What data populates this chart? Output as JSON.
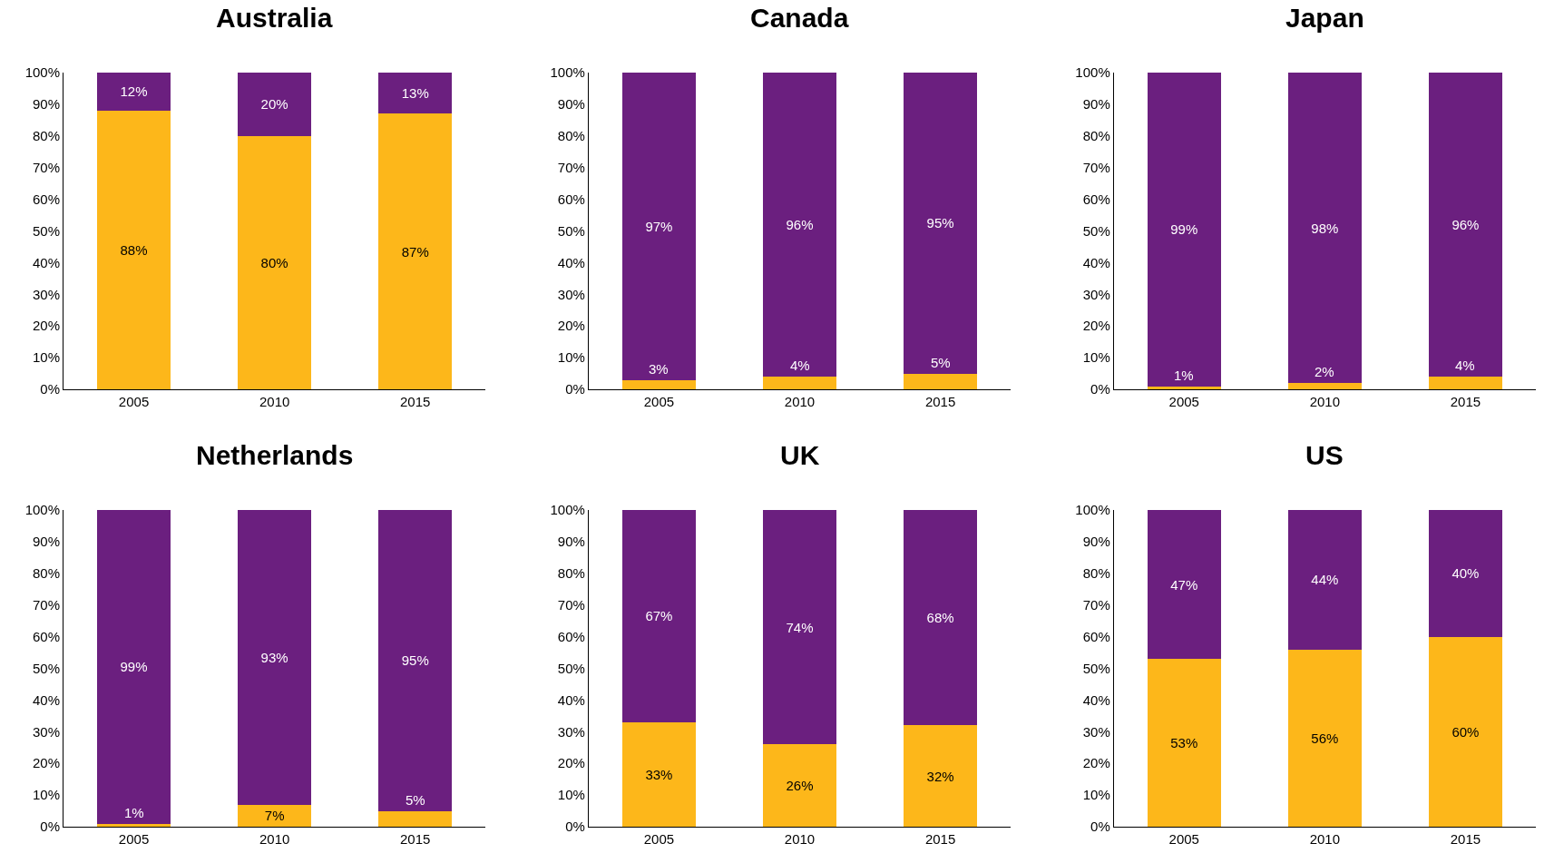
{
  "chart_data": [
    {
      "type": "bar",
      "title": "Australia",
      "categories": [
        "2005",
        "2010",
        "2015"
      ],
      "stacked": true,
      "ylim": [
        0,
        100
      ],
      "yticks": [
        {
          "value": 0,
          "label": "0%"
        },
        {
          "value": 10,
          "label": "10%"
        },
        {
          "value": 20,
          "label": "20%"
        },
        {
          "value": 30,
          "label": "30%"
        },
        {
          "value": 40,
          "label": "40%"
        },
        {
          "value": 50,
          "label": "50%"
        },
        {
          "value": 60,
          "label": "60%"
        },
        {
          "value": 70,
          "label": "70%"
        },
        {
          "value": 80,
          "label": "80%"
        },
        {
          "value": 90,
          "label": "90%"
        },
        {
          "value": 100,
          "label": "100%"
        }
      ],
      "series": [
        {
          "color": "#fdb71a",
          "values": [
            88,
            80,
            87
          ],
          "value_labels": [
            "88%",
            "80%",
            "87%"
          ]
        },
        {
          "color": "#6b1f7f",
          "values": [
            12,
            20,
            13
          ],
          "value_labels": [
            "12%",
            "20%",
            "13%"
          ]
        }
      ]
    },
    {
      "type": "bar",
      "title": "Canada",
      "categories": [
        "2005",
        "2010",
        "2015"
      ],
      "stacked": true,
      "ylim": [
        0,
        100
      ],
      "yticks": [
        {
          "value": 0,
          "label": "0%"
        },
        {
          "value": 10,
          "label": "10%"
        },
        {
          "value": 20,
          "label": "20%"
        },
        {
          "value": 30,
          "label": "30%"
        },
        {
          "value": 40,
          "label": "40%"
        },
        {
          "value": 50,
          "label": "50%"
        },
        {
          "value": 60,
          "label": "60%"
        },
        {
          "value": 70,
          "label": "70%"
        },
        {
          "value": 80,
          "label": "80%"
        },
        {
          "value": 90,
          "label": "90%"
        },
        {
          "value": 100,
          "label": "100%"
        }
      ],
      "series": [
        {
          "color": "#fdb71a",
          "values": [
            3,
            4,
            5
          ],
          "value_labels": [
            "3%",
            "4%",
            "5%"
          ]
        },
        {
          "color": "#6b1f7f",
          "values": [
            97,
            96,
            95
          ],
          "value_labels": [
            "97%",
            "96%",
            "95%"
          ]
        }
      ]
    },
    {
      "type": "bar",
      "title": "Japan",
      "categories": [
        "2005",
        "2010",
        "2015"
      ],
      "stacked": true,
      "ylim": [
        0,
        100
      ],
      "yticks": [
        {
          "value": 0,
          "label": "0%"
        },
        {
          "value": 10,
          "label": "10%"
        },
        {
          "value": 20,
          "label": "20%"
        },
        {
          "value": 30,
          "label": "30%"
        },
        {
          "value": 40,
          "label": "40%"
        },
        {
          "value": 50,
          "label": "50%"
        },
        {
          "value": 60,
          "label": "60%"
        },
        {
          "value": 70,
          "label": "70%"
        },
        {
          "value": 80,
          "label": "80%"
        },
        {
          "value": 90,
          "label": "90%"
        },
        {
          "value": 100,
          "label": "100%"
        }
      ],
      "series": [
        {
          "color": "#fdb71a",
          "values": [
            1,
            2,
            4
          ],
          "value_labels": [
            "1%",
            "2%",
            "4%"
          ]
        },
        {
          "color": "#6b1f7f",
          "values": [
            99,
            98,
            96
          ],
          "value_labels": [
            "99%",
            "98%",
            "96%"
          ]
        }
      ]
    },
    {
      "type": "bar",
      "title": "Netherlands",
      "categories": [
        "2005",
        "2010",
        "2015"
      ],
      "stacked": true,
      "ylim": [
        0,
        100
      ],
      "yticks": [
        {
          "value": 0,
          "label": "0%"
        },
        {
          "value": 10,
          "label": "10%"
        },
        {
          "value": 20,
          "label": "20%"
        },
        {
          "value": 30,
          "label": "30%"
        },
        {
          "value": 40,
          "label": "40%"
        },
        {
          "value": 50,
          "label": "50%"
        },
        {
          "value": 60,
          "label": "60%"
        },
        {
          "value": 70,
          "label": "70%"
        },
        {
          "value": 80,
          "label": "80%"
        },
        {
          "value": 90,
          "label": "90%"
        },
        {
          "value": 100,
          "label": "100%"
        }
      ],
      "series": [
        {
          "color": "#fdb71a",
          "values": [
            1,
            7,
            5
          ],
          "value_labels": [
            "1%",
            "7%",
            "5%"
          ]
        },
        {
          "color": "#6b1f7f",
          "values": [
            99,
            93,
            95
          ],
          "value_labels": [
            "99%",
            "93%",
            "95%"
          ]
        }
      ]
    },
    {
      "type": "bar",
      "title": "UK",
      "categories": [
        "2005",
        "2010",
        "2015"
      ],
      "stacked": true,
      "ylim": [
        0,
        100
      ],
      "yticks": [
        {
          "value": 0,
          "label": "0%"
        },
        {
          "value": 10,
          "label": "10%"
        },
        {
          "value": 20,
          "label": "20%"
        },
        {
          "value": 30,
          "label": "30%"
        },
        {
          "value": 40,
          "label": "40%"
        },
        {
          "value": 50,
          "label": "50%"
        },
        {
          "value": 60,
          "label": "60%"
        },
        {
          "value": 70,
          "label": "70%"
        },
        {
          "value": 80,
          "label": "80%"
        },
        {
          "value": 90,
          "label": "90%"
        },
        {
          "value": 100,
          "label": "100%"
        }
      ],
      "series": [
        {
          "color": "#fdb71a",
          "values": [
            33,
            26,
            32
          ],
          "value_labels": [
            "33%",
            "26%",
            "32%"
          ]
        },
        {
          "color": "#6b1f7f",
          "values": [
            67,
            74,
            68
          ],
          "value_labels": [
            "67%",
            "74%",
            "68%"
          ]
        }
      ]
    },
    {
      "type": "bar",
      "title": "US",
      "categories": [
        "2005",
        "2010",
        "2015"
      ],
      "stacked": true,
      "ylim": [
        0,
        100
      ],
      "yticks": [
        {
          "value": 0,
          "label": "0%"
        },
        {
          "value": 10,
          "label": "10%"
        },
        {
          "value": 20,
          "label": "20%"
        },
        {
          "value": 30,
          "label": "30%"
        },
        {
          "value": 40,
          "label": "40%"
        },
        {
          "value": 50,
          "label": "50%"
        },
        {
          "value": 60,
          "label": "60%"
        },
        {
          "value": 70,
          "label": "70%"
        },
        {
          "value": 80,
          "label": "80%"
        },
        {
          "value": 90,
          "label": "90%"
        },
        {
          "value": 100,
          "label": "100%"
        }
      ],
      "series": [
        {
          "color": "#fdb71a",
          "values": [
            53,
            56,
            60
          ],
          "value_labels": [
            "53%",
            "56%",
            "60%"
          ]
        },
        {
          "color": "#6b1f7f",
          "values": [
            47,
            44,
            40
          ],
          "value_labels": [
            "47%",
            "44%",
            "40%"
          ]
        }
      ]
    }
  ]
}
